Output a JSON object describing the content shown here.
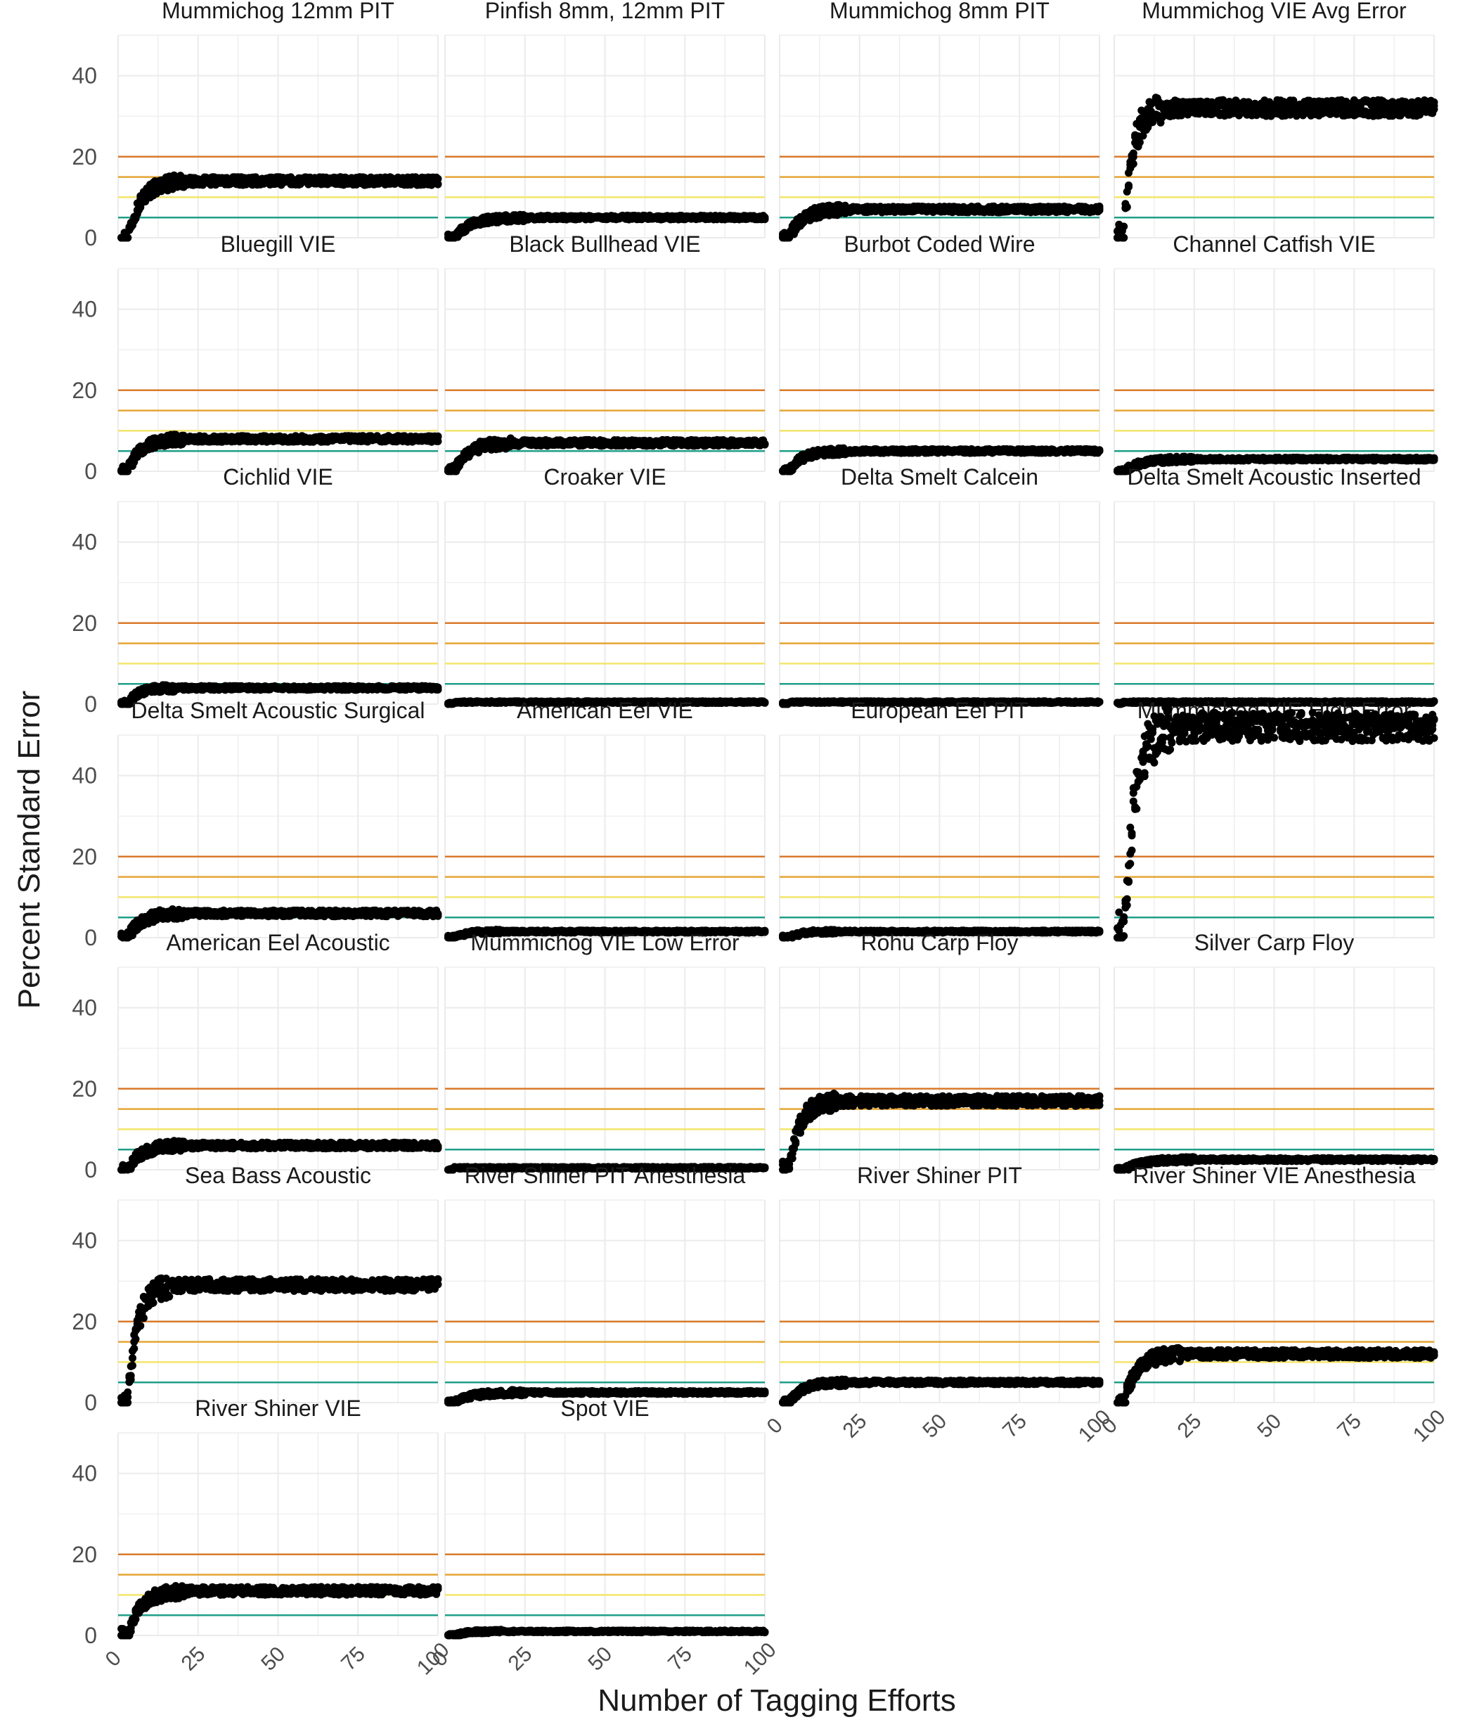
{
  "chart_data": {
    "type": "scatter",
    "layout": "facet-grid",
    "xlabel": "Number of Tagging Efforts",
    "ylabel": "Percent Standard Error",
    "xlim": [
      0,
      100
    ],
    "ylim": [
      0,
      50
    ],
    "x_ticks": [
      0,
      25,
      50,
      75,
      100
    ],
    "y_ticks": [
      0,
      20,
      40
    ],
    "reference_lines": [
      {
        "y": 5,
        "color": "#1f9e89"
      },
      {
        "y": 10,
        "color": "#f3e56a"
      },
      {
        "y": 15,
        "color": "#e5a535"
      },
      {
        "y": 20,
        "color": "#d97a2b"
      }
    ],
    "panels": [
      {
        "title": "Mummichog 12mm PIT",
        "start_x": 3,
        "rise_x": 12,
        "final": 14,
        "spread": 2
      },
      {
        "title": "Pinfish 8mm, 12mm PIT",
        "start_x": 3,
        "rise_x": 15,
        "final": 5,
        "spread": 1
      },
      {
        "title": "Mummichog 8mm PIT",
        "start_x": 3,
        "rise_x": 12,
        "final": 7,
        "spread": 1.5
      },
      {
        "title": "Mummichog VIE Avg Error",
        "start_x": 3,
        "rise_x": 8,
        "final": 32,
        "spread": 4
      },
      {
        "title": "Bluegill VIE",
        "start_x": 3,
        "rise_x": 12,
        "final": 8,
        "spread": 1.5
      },
      {
        "title": "Black Bullhead VIE",
        "start_x": 3,
        "rise_x": 12,
        "final": 7,
        "spread": 1.5
      },
      {
        "title": "Burbot Coded Wire",
        "start_x": 3,
        "rise_x": 12,
        "final": 5,
        "spread": 1
      },
      {
        "title": "Channel Catfish VIE",
        "start_x": 3,
        "rise_x": 15,
        "final": 3,
        "spread": 0.8
      },
      {
        "title": "Cichlid VIE",
        "start_x": 3,
        "rise_x": 10,
        "final": 4,
        "spread": 1
      },
      {
        "title": "Croaker VIE",
        "start_x": 3,
        "rise_x": 0,
        "final": 0.5,
        "spread": 0.5
      },
      {
        "title": "Delta Smelt Calcein",
        "start_x": 3,
        "rise_x": 0,
        "final": 0.5,
        "spread": 0.5
      },
      {
        "title": "Delta Smelt Acoustic Inserted",
        "start_x": 3,
        "rise_x": 0,
        "final": 0.5,
        "spread": 0.5
      },
      {
        "title": "Delta Smelt Acoustic Surgical",
        "start_x": 3,
        "rise_x": 12,
        "final": 6,
        "spread": 1.5
      },
      {
        "title": "American Eel VIE",
        "start_x": 3,
        "rise_x": 10,
        "final": 1.5,
        "spread": 0.6
      },
      {
        "title": "European Eel PIT",
        "start_x": 3,
        "rise_x": 10,
        "final": 1.5,
        "spread": 0.6
      },
      {
        "title": "Mummichog VIE High Error",
        "start_x": 3,
        "rise_x": 10,
        "final": 52,
        "spread": 7
      },
      {
        "title": "American Eel Acoustic",
        "start_x": 3,
        "rise_x": 12,
        "final": 6,
        "spread": 1.5
      },
      {
        "title": "Mummichog VIE Low Error",
        "start_x": 3,
        "rise_x": 0,
        "final": 0.5,
        "spread": 0.5
      },
      {
        "title": "Rohu Carp Floy",
        "start_x": 3,
        "rise_x": 10,
        "final": 17,
        "spread": 2.5
      },
      {
        "title": "Silver Carp Floy",
        "start_x": 3,
        "rise_x": 15,
        "final": 2.5,
        "spread": 0.8
      },
      {
        "title": "Sea Bass Acoustic",
        "start_x": 3,
        "rise_x": 9,
        "final": 29,
        "spread": 3
      },
      {
        "title": "River Shiner PIT Anesthesia",
        "start_x": 3,
        "rise_x": 15,
        "final": 2.5,
        "spread": 0.8
      },
      {
        "title": "River Shiner PIT",
        "start_x": 3,
        "rise_x": 12,
        "final": 5,
        "spread": 1
      },
      {
        "title": "River Shiner VIE Anesthesia",
        "start_x": 3,
        "rise_x": 12,
        "final": 12,
        "spread": 2
      },
      {
        "title": "River Shiner VIE",
        "start_x": 3,
        "rise_x": 12,
        "final": 11,
        "spread": 2
      },
      {
        "title": "Spot VIE",
        "start_x": 3,
        "rise_x": 10,
        "final": 1,
        "spread": 0.5
      }
    ]
  }
}
